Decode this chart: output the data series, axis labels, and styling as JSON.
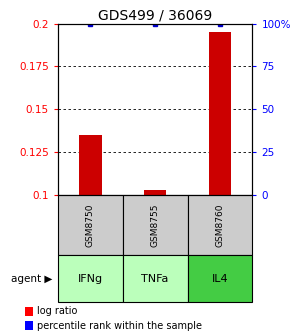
{
  "title": "GDS499 / 36069",
  "samples": [
    "GSM8750",
    "GSM8755",
    "GSM8760"
  ],
  "agents": [
    "IFNg",
    "TNFa",
    "IL4"
  ],
  "log_ratios": [
    0.135,
    0.103,
    0.195
  ],
  "percentile_rank_yvals": [
    0.1995,
    0.1995,
    0.1995
  ],
  "ylim_left": [
    0.1,
    0.2
  ],
  "ylim_right": [
    0,
    100
  ],
  "yticks_left": [
    0.1,
    0.125,
    0.15,
    0.175,
    0.2
  ],
  "yticks_right": [
    0,
    25,
    50,
    75,
    100
  ],
  "ytick_labels_left": [
    "0.1",
    "0.125",
    "0.15",
    "0.175",
    "0.2"
  ],
  "ytick_labels_right": [
    "0",
    "25",
    "50",
    "75",
    "100%"
  ],
  "bar_color": "#cc0000",
  "dot_color": "#0000cc",
  "agent_colors": [
    "#bbffbb",
    "#bbffbb",
    "#44cc44"
  ],
  "sample_bg_color": "#cccccc",
  "title_fontsize": 10,
  "tick_fontsize": 7.5,
  "legend_fontsize": 7,
  "bar_width": 0.35,
  "x_positions": [
    1,
    2,
    3
  ],
  "xlim": [
    0.5,
    3.5
  ]
}
